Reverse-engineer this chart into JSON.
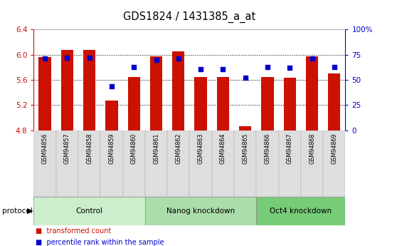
{
  "title": "GDS1824 / 1431385_a_at",
  "samples": [
    "GSM94856",
    "GSM94857",
    "GSM94858",
    "GSM94859",
    "GSM94860",
    "GSM94861",
    "GSM94862",
    "GSM94863",
    "GSM94864",
    "GSM94865",
    "GSM94866",
    "GSM94867",
    "GSM94868",
    "GSM94869"
  ],
  "bar_values": [
    5.96,
    6.08,
    6.08,
    5.27,
    5.65,
    5.97,
    6.05,
    5.65,
    5.65,
    4.87,
    5.65,
    5.63,
    5.97,
    5.7
  ],
  "dot_values": [
    71,
    72,
    72,
    44,
    63,
    70,
    71,
    61,
    61,
    52,
    63,
    62,
    71,
    63
  ],
  "ymin": 4.8,
  "ymax": 6.4,
  "y_ticks": [
    4.8,
    5.2,
    5.6,
    6.0,
    6.4
  ],
  "y2min": 0,
  "y2max": 100,
  "y2_ticks": [
    0,
    25,
    50,
    75,
    100
  ],
  "y2_tick_labels": [
    "0",
    "25",
    "50",
    "75",
    "100%"
  ],
  "bar_color": "#CC1100",
  "dot_color": "#0000CC",
  "groups": [
    {
      "label": "Control",
      "start": 0,
      "end": 5,
      "color": "#CCEECC"
    },
    {
      "label": "Nanog knockdown",
      "start": 5,
      "end": 10,
      "color": "#AADDAA"
    },
    {
      "label": "Oct4 knockdown",
      "start": 10,
      "end": 14,
      "color": "#77CC77"
    }
  ],
  "protocol_label": "protocol",
  "legend_items": [
    {
      "label": "transformed count",
      "color": "#CC1100"
    },
    {
      "label": "percentile rank within the sample",
      "color": "#0000CC"
    }
  ],
  "tick_color_left": "#CC1100",
  "tick_color_right": "#0000CC",
  "plot_bg": "#FFFFFF",
  "xtick_bg_odd": "#DDDDDD",
  "xtick_bg_even": "#DDDDDD"
}
